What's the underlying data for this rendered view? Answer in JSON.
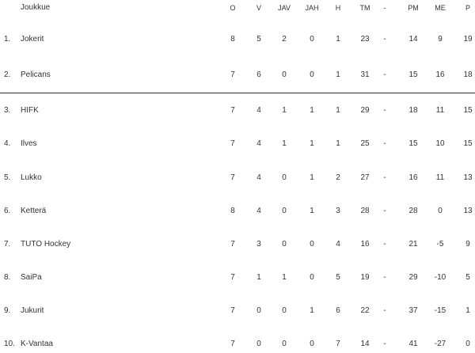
{
  "header": {
    "team": "Joukkue",
    "columns": [
      "O",
      "V",
      "JAV",
      "JAH",
      "H",
      "TM",
      "-",
      "PM",
      "ME",
      "P"
    ]
  },
  "rows": [
    {
      "rank": "1.",
      "team": "Jokerit",
      "stats": [
        "8",
        "5",
        "2",
        "0",
        "1",
        "23",
        "-",
        "14",
        "9",
        "19"
      ]
    },
    {
      "rank": "2.",
      "team": "Pelicans",
      "stats": [
        "7",
        "6",
        "0",
        "0",
        "1",
        "31",
        "-",
        "15",
        "16",
        "18"
      ]
    },
    {
      "rank": "3.",
      "team": "HIFK",
      "stats": [
        "7",
        "4",
        "1",
        "1",
        "1",
        "29",
        "-",
        "18",
        "11",
        "15"
      ]
    },
    {
      "rank": "4.",
      "team": "Ilves",
      "stats": [
        "7",
        "4",
        "1",
        "1",
        "1",
        "25",
        "-",
        "15",
        "10",
        "15"
      ]
    },
    {
      "rank": "5.",
      "team": "Lukko",
      "stats": [
        "7",
        "4",
        "0",
        "1",
        "2",
        "27",
        "-",
        "16",
        "11",
        "13"
      ]
    },
    {
      "rank": "6.",
      "team": "Ketterä",
      "stats": [
        "8",
        "4",
        "0",
        "1",
        "3",
        "28",
        "-",
        "28",
        "0",
        "13"
      ]
    },
    {
      "rank": "7.",
      "team": "TUTO Hockey",
      "stats": [
        "7",
        "3",
        "0",
        "0",
        "4",
        "16",
        "-",
        "21",
        "-5",
        "9"
      ]
    },
    {
      "rank": "8.",
      "team": "SaiPa",
      "stats": [
        "7",
        "1",
        "1",
        "0",
        "5",
        "19",
        "-",
        "29",
        "-10",
        "5"
      ]
    },
    {
      "rank": "9.",
      "team": "Jukurit",
      "stats": [
        "7",
        "0",
        "0",
        "1",
        "6",
        "22",
        "-",
        "37",
        "-15",
        "1"
      ]
    },
    {
      "rank": "10.",
      "team": "K-Vantaa",
      "stats": [
        "7",
        "0",
        "0",
        "0",
        "7",
        "14",
        "-",
        "41",
        "-27",
        "0"
      ]
    }
  ]
}
